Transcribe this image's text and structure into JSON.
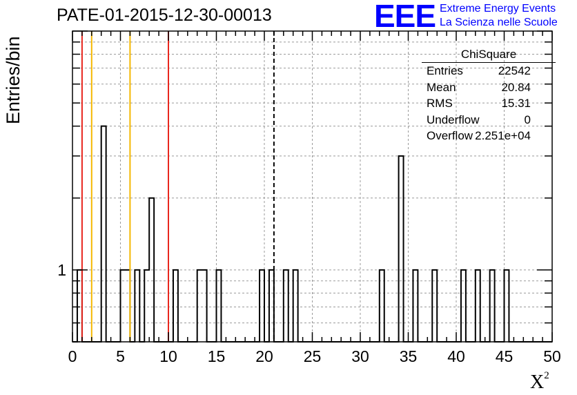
{
  "header": {
    "title": "PATE-01-2015-12-30-00013",
    "logo_mark": "EEE",
    "logo_line1": "Extreme Energy Events",
    "logo_line2": "La Scienza nelle Scuole"
  },
  "stats_box": {
    "title": "ChiSquare",
    "rows": [
      {
        "label": "Entries",
        "value": "22542"
      },
      {
        "label": "Mean",
        "value": "20.84"
      },
      {
        "label": "RMS",
        "value": "15.31"
      },
      {
        "label": "Underflow",
        "value": "0"
      },
      {
        "label": "Overflow",
        "value": "2.251e+04"
      }
    ]
  },
  "chart_data": {
    "type": "bar",
    "histogram": true,
    "ylabel": "Entries/bin",
    "xlabel": "X",
    "xlabel_superscript": "2",
    "xlim": [
      0,
      50
    ],
    "ylim_log": [
      0.5,
      10
    ],
    "log_y": true,
    "grid": true,
    "bin_width": 0.5,
    "x_ticks": [
      "0",
      "5",
      "10",
      "15",
      "20",
      "25",
      "30",
      "35",
      "40",
      "45",
      "50"
    ],
    "y_ticks": [
      "1"
    ],
    "bins": [
      {
        "x0": 0.5,
        "count": 1
      },
      {
        "x0": 3.0,
        "count": 4
      },
      {
        "x0": 5.0,
        "count": 1
      },
      {
        "x0": 5.5,
        "count": 1
      },
      {
        "x0": 6.5,
        "count": 1
      },
      {
        "x0": 7.5,
        "count": 1
      },
      {
        "x0": 8.0,
        "count": 2
      },
      {
        "x0": 10.5,
        "count": 1
      },
      {
        "x0": 13.0,
        "count": 1
      },
      {
        "x0": 13.5,
        "count": 1
      },
      {
        "x0": 15.0,
        "count": 1
      },
      {
        "x0": 19.5,
        "count": 1
      },
      {
        "x0": 20.5,
        "count": 1
      },
      {
        "x0": 22.0,
        "count": 1
      },
      {
        "x0": 23.0,
        "count": 1
      },
      {
        "x0": 32.0,
        "count": 1
      },
      {
        "x0": 34.0,
        "count": 3
      },
      {
        "x0": 35.5,
        "count": 1
      },
      {
        "x0": 37.5,
        "count": 1
      },
      {
        "x0": 40.5,
        "count": 1
      },
      {
        "x0": 42.0,
        "count": 1
      },
      {
        "x0": 43.5,
        "count": 1
      },
      {
        "x0": 45.0,
        "count": 1
      }
    ],
    "reference_lines": [
      {
        "x": 1,
        "color": "#e8261d",
        "style": "solid"
      },
      {
        "x": 2,
        "color": "#f5b800",
        "style": "solid"
      },
      {
        "x": 6,
        "color": "#f5b800",
        "style": "solid"
      },
      {
        "x": 10,
        "color": "#e8261d",
        "style": "solid"
      },
      {
        "x": 21,
        "color": "#000000",
        "style": "dashed"
      }
    ]
  }
}
